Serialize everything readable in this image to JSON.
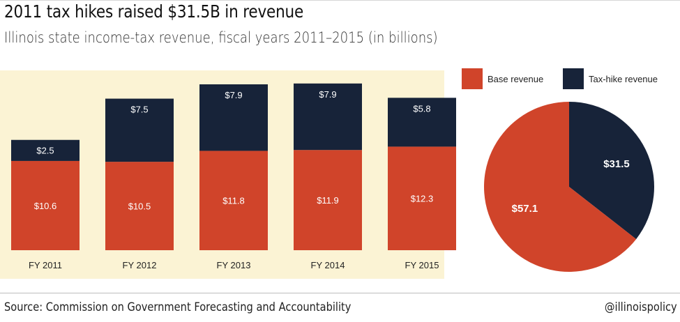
{
  "header": {
    "title": "2011 tax hikes raised $31.5B in revenue",
    "subtitle": "Illinois state income-tax revenue, fiscal years 2011–2015 (in billions)"
  },
  "colors": {
    "base": "#d0442a",
    "hike": "#172339",
    "panel": "#fbf3d4"
  },
  "legend": {
    "base_label": "Base revenue",
    "hike_label": "Tax-hike revenue"
  },
  "footer": {
    "source": "Source: Commission on Government Forecasting and Accountability",
    "handle": "@illinoispolicy"
  },
  "chart_data": [
    {
      "type": "bar",
      "stacked": true,
      "categories": [
        "FY 2011",
        "FY 2012",
        "FY 2013",
        "FY 2014",
        "FY 2015"
      ],
      "series": [
        {
          "name": "Base revenue",
          "values": [
            10.6,
            10.5,
            11.8,
            11.9,
            12.3
          ],
          "labels": [
            "$10.6",
            "$10.5",
            "$11.8",
            "$11.9",
            "$12.3"
          ]
        },
        {
          "name": "Tax-hike revenue",
          "values": [
            2.5,
            7.5,
            7.9,
            7.9,
            5.8
          ],
          "labels": [
            "$2.5",
            "$7.5",
            "$7.9",
            "$7.9",
            "$5.8"
          ]
        }
      ],
      "ylim": [
        0,
        19.7
      ],
      "grid": false
    },
    {
      "type": "pie",
      "categories": [
        "Base revenue",
        "Tax-hike revenue"
      ],
      "values": [
        57.1,
        31.5
      ],
      "labels": [
        "$57.1",
        "$31.5"
      ],
      "legend": "top"
    }
  ]
}
